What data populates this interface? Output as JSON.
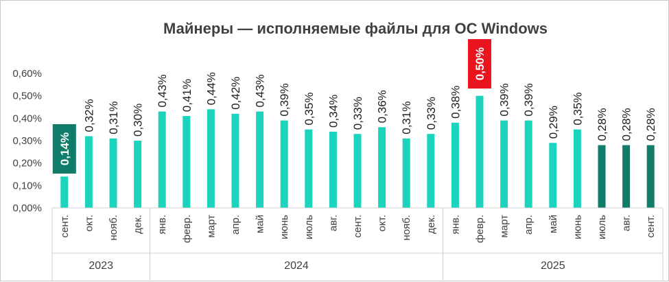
{
  "chart_data": {
    "type": "bar",
    "title": "Майнеры — исполняемые файлы для ОС Windows",
    "ylim": [
      0,
      0.6
    ],
    "yticks": [
      "0,00%",
      "0,10%",
      "0,20%",
      "0,30%",
      "0,40%",
      "0,50%",
      "0,60%"
    ],
    "grid": false,
    "categories": [
      "сент.",
      "окт.",
      "нояб.",
      "дек.",
      "янв.",
      "февр.",
      "март",
      "апр.",
      "май",
      "июнь",
      "июль",
      "авг.",
      "сент.",
      "окт.",
      "нояб.",
      "дек.",
      "янв.",
      "февр.",
      "март",
      "апр.",
      "май",
      "июнь",
      "июль",
      "авг.",
      "сент."
    ],
    "values": [
      0.14,
      0.32,
      0.31,
      0.3,
      0.43,
      0.41,
      0.44,
      0.42,
      0.43,
      0.39,
      0.35,
      0.34,
      0.33,
      0.36,
      0.31,
      0.33,
      0.38,
      0.5,
      0.39,
      0.39,
      0.29,
      0.35,
      0.28,
      0.28,
      0.28
    ],
    "labels": [
      "0,14%",
      "0,32%",
      "0,31%",
      "0,30%",
      "0,43%",
      "0,41%",
      "0,44%",
      "0,42%",
      "0,43%",
      "0,39%",
      "0,35%",
      "0,34%",
      "0,33%",
      "0,36%",
      "0,31%",
      "0,33%",
      "0,38%",
      "0,50%",
      "0,39%",
      "0,39%",
      "0,29%",
      "0,35%",
      "0,28%",
      "0,28%",
      "0,28%"
    ],
    "highlights": {
      "min": {
        "index": 0,
        "color": "#0f7d6a"
      },
      "max": {
        "index": 17,
        "color": "#e8141e"
      }
    },
    "bar_colors": {
      "default": "#1cd3bd",
      "recent": "#0f7d6a",
      "recent_indices": [
        22,
        23,
        24
      ]
    },
    "year_groups": [
      {
        "label": "2023",
        "start": 0,
        "end": 3
      },
      {
        "label": "2024",
        "start": 4,
        "end": 15
      },
      {
        "label": "2025",
        "start": 16,
        "end": 24
      }
    ]
  }
}
